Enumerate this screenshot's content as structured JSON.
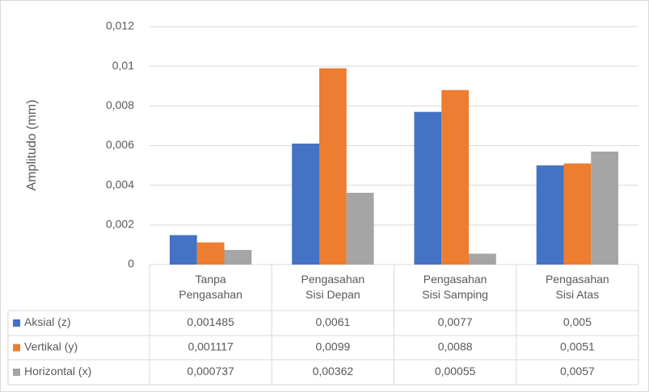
{
  "chart_data": {
    "type": "bar",
    "y_axis_label": "Amplitudo (mm)",
    "categories": [
      "Tanpa Pengasahan",
      "Pengasahan Sisi Depan",
      "Pengasahan Sisi Samping",
      "Pengasahan Sisi Atas"
    ],
    "series": [
      {
        "name": "Aksial (z)",
        "color": "#4472c4",
        "values": [
          0.001485,
          0.0061,
          0.0077,
          0.005
        ],
        "value_labels": [
          "0,001485",
          "0,0061",
          "0,0077",
          "0,005"
        ]
      },
      {
        "name": "Vertikal (y)",
        "color": "#ed7d31",
        "values": [
          0.001117,
          0.0099,
          0.0088,
          0.0051
        ],
        "value_labels": [
          "0,001117",
          "0,0099",
          "0,0088",
          "0,0051"
        ]
      },
      {
        "name": "Horizontal (x)",
        "color": "#a5a5a5",
        "values": [
          0.000737,
          0.00362,
          0.00055,
          0.0057
        ],
        "value_labels": [
          "0,000737",
          "0,00362",
          "0,00055",
          "0,0057"
        ]
      }
    ],
    "ylim": [
      0,
      0.012
    ],
    "yticks": [
      0,
      {
        "value": 0.002,
        "label": "0,002"
      },
      {
        "value": 0.004,
        "label": "0,004"
      },
      {
        "value": 0.006,
        "label": "0,006"
      },
      {
        "value": 0.008,
        "label": "0,008"
      },
      {
        "value": 0.01,
        "label": "0,01"
      },
      {
        "value": 0.012,
        "label": "0,012"
      }
    ],
    "grid": true,
    "legend": "data-table"
  }
}
